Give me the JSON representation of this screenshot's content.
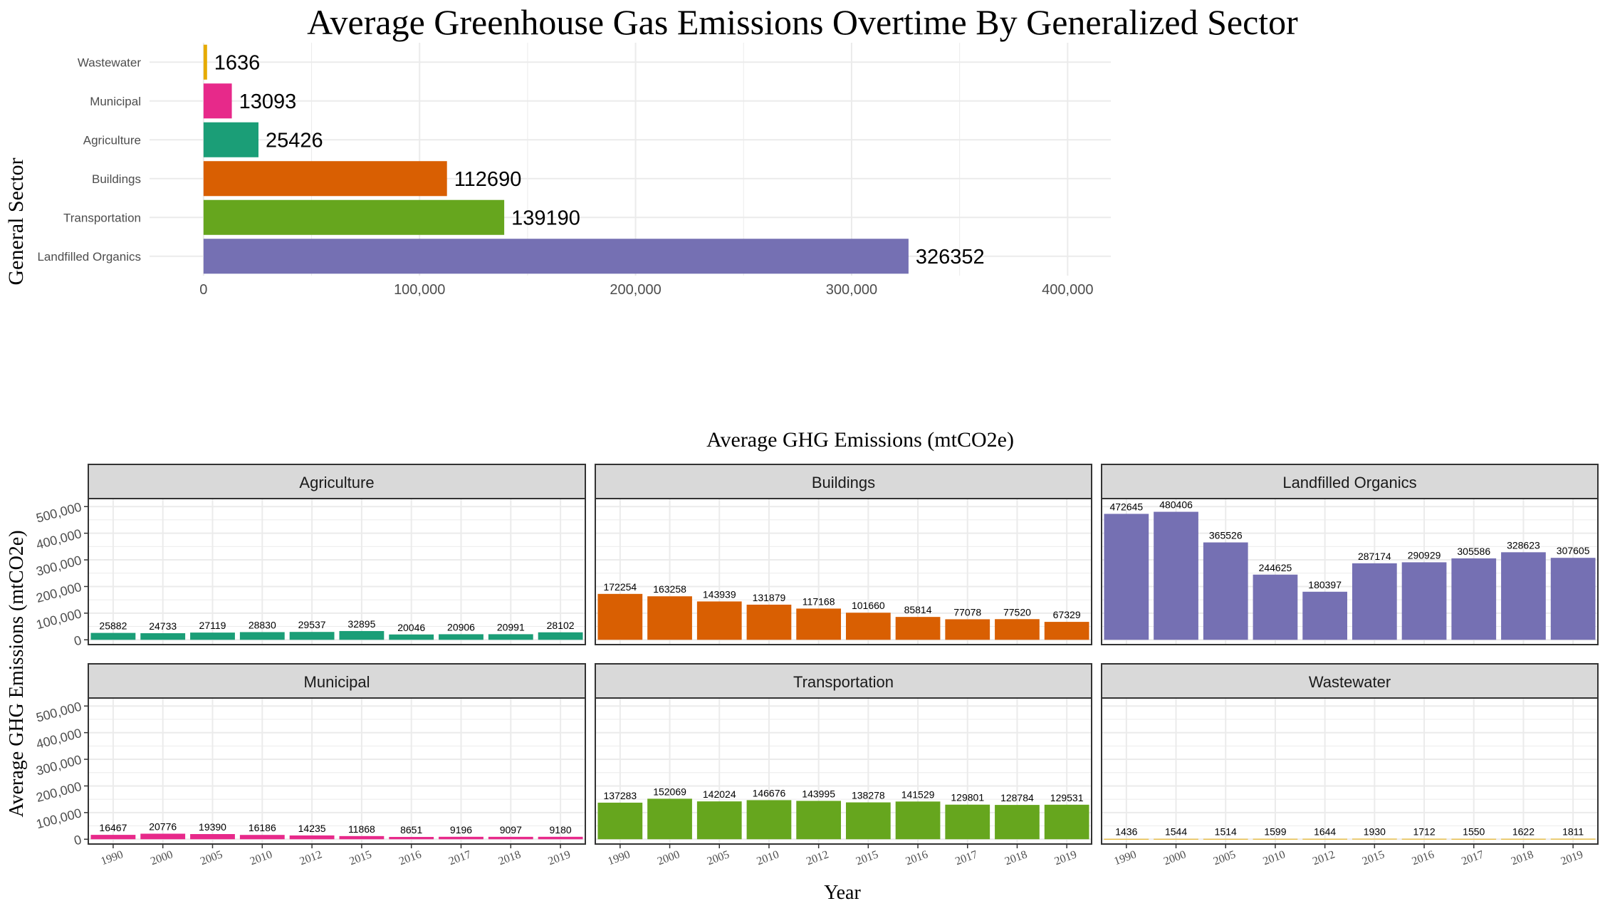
{
  "colors": {
    "Agriculture": "#1b9e77",
    "Buildings": "#d95f02",
    "Landfilled Organics": "#7570b3",
    "Municipal": "#e7298a",
    "Transportation": "#66a61e",
    "Wastewater": "#e6ab02",
    "grid": "#ebebeb",
    "strip": "#d9d9d9"
  },
  "chart_data": [
    {
      "type": "bar",
      "orientation": "horizontal",
      "title": "Average Greenhouse Gas Emissions Overtime By Generalized Sector",
      "xlabel": "Average GHG Emissions (mtCO2e)",
      "ylabel": "General Sector",
      "xlim": [
        0,
        400000
      ],
      "xticks": [
        "0",
        "100,000",
        "200,000",
        "300,000",
        "400,000"
      ],
      "grid": true,
      "categories": [
        "Wastewater",
        "Municipal",
        "Agriculture",
        "Buildings",
        "Transportation",
        "Landfilled Organics"
      ],
      "values": [
        1636,
        13093,
        25426,
        112690,
        139190,
        326352
      ]
    },
    {
      "type": "bar",
      "faceted": true,
      "xlabel": "Year",
      "ylabel": "Average GHG Emissions (mtCO2e)",
      "ylim": [
        0,
        500000
      ],
      "yticks": [
        "0",
        "100,000",
        "200,000",
        "300,000",
        "400,000",
        "500,000"
      ],
      "grid": true,
      "categories": [
        "1990",
        "2000",
        "2005",
        "2010",
        "2012",
        "2015",
        "2016",
        "2017",
        "2018",
        "2019"
      ],
      "series": [
        {
          "name": "Agriculture",
          "values": [
            25882,
            24733,
            27119,
            28830,
            29537,
            32895,
            20046,
            20906,
            20991,
            28102
          ]
        },
        {
          "name": "Buildings",
          "values": [
            172254,
            163258,
            143939,
            131879,
            117168,
            101660,
            85814,
            77078,
            77520,
            67329
          ]
        },
        {
          "name": "Landfilled Organics",
          "values": [
            472645,
            480406,
            365526,
            244625,
            180397,
            287174,
            290929,
            305586,
            328623,
            307605
          ]
        },
        {
          "name": "Municipal",
          "values": [
            16467,
            20776,
            19390,
            16186,
            14235,
            11868,
            8651,
            9196,
            9097,
            9180
          ]
        },
        {
          "name": "Transportation",
          "values": [
            137283,
            152069,
            142024,
            146676,
            143995,
            138278,
            141529,
            129801,
            128784,
            129531
          ]
        },
        {
          "name": "Wastewater",
          "values": [
            1436,
            1544,
            1514,
            1599,
            1644,
            1930,
            1712,
            1550,
            1622,
            1811
          ]
        }
      ]
    }
  ]
}
